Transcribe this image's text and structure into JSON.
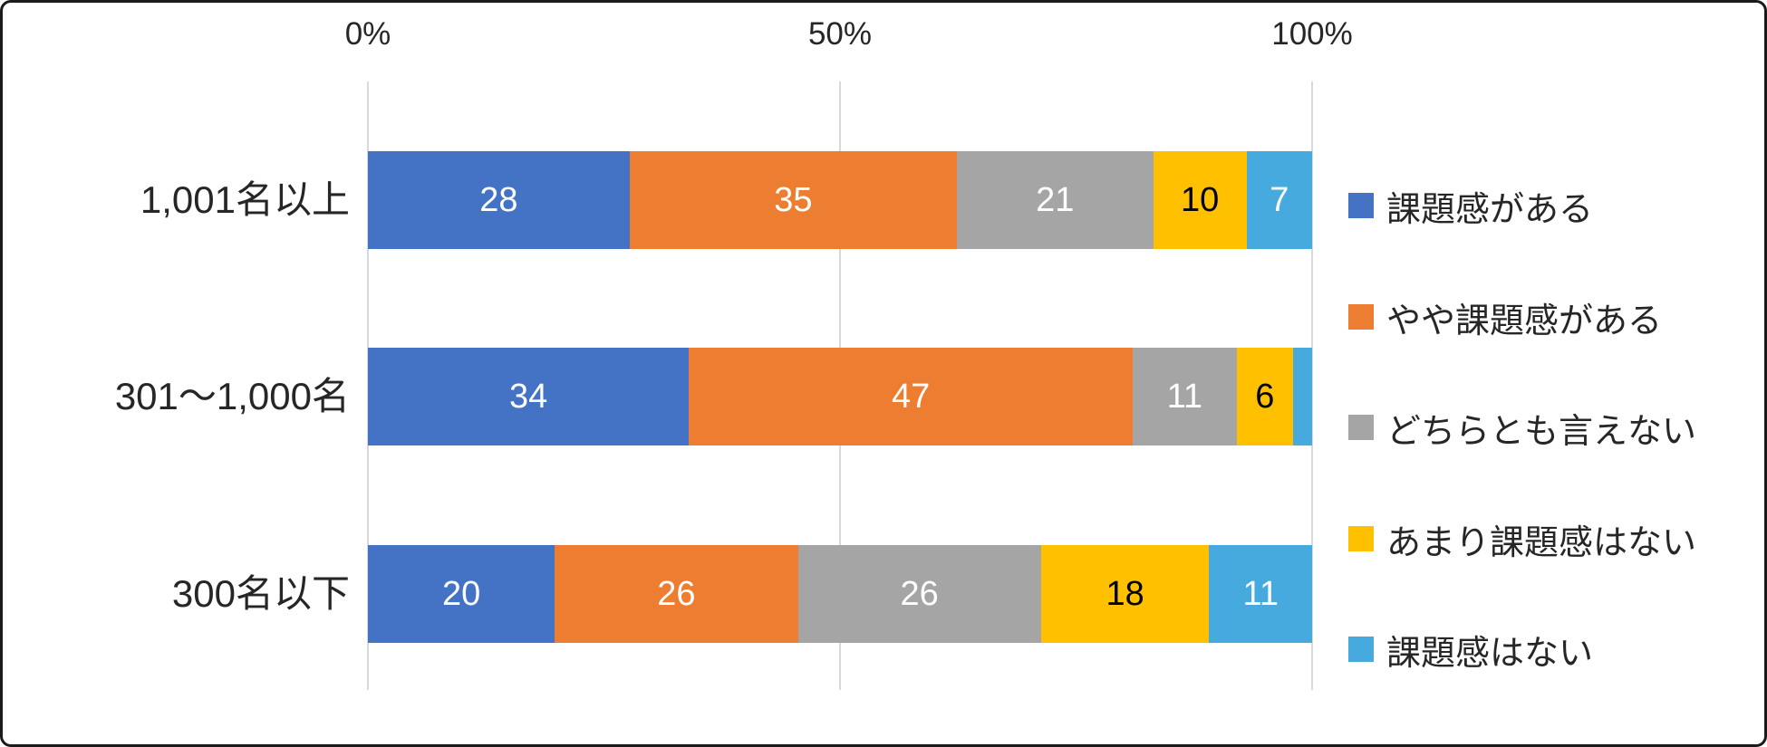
{
  "chart_data": {
    "type": "bar",
    "variant": "100-percent-stacked-horizontal",
    "title": "",
    "x_axis": {
      "range": [
        0,
        100
      ],
      "grid": true,
      "ticks": [
        {
          "label": "0%",
          "value": 0
        },
        {
          "label": "50%",
          "value": 50
        },
        {
          "label": "100%",
          "value": 100
        }
      ]
    },
    "categories": [
      "1,001名以上",
      "301〜1,000名",
      "300名以下"
    ],
    "series": [
      {
        "name": "課題感がある",
        "color": "#4472C4",
        "label_color": "#FFFFFF",
        "values": [
          28,
          34,
          20
        ]
      },
      {
        "name": "やや課題感がある",
        "color": "#ED7D31",
        "label_color": "#FFFFFF",
        "values": [
          35,
          47,
          26
        ]
      },
      {
        "name": "どちらとも言えない",
        "color": "#A5A5A5",
        "label_color": "#FFFFFF",
        "values": [
          21,
          11,
          26
        ]
      },
      {
        "name": "あまり課題感はない",
        "color": "#FFC000",
        "label_color": "#000000",
        "values": [
          10,
          6,
          18
        ]
      },
      {
        "name": "課題感はない",
        "color": "#47AADF",
        "label_color": "#FFFFFF",
        "values": [
          7,
          2,
          11
        ]
      }
    ],
    "data_labels": [
      [
        "28",
        "35",
        "21",
        "10",
        "7"
      ],
      [
        "34",
        "47",
        "11",
        "6",
        ""
      ],
      [
        "20",
        "26",
        "26",
        "18",
        "11"
      ]
    ],
    "legend_position": "right"
  },
  "colors": {
    "text": "#262626",
    "gridline": "#D9D9D9",
    "border": "#1A1A1A",
    "background": "#FFFFFF"
  }
}
